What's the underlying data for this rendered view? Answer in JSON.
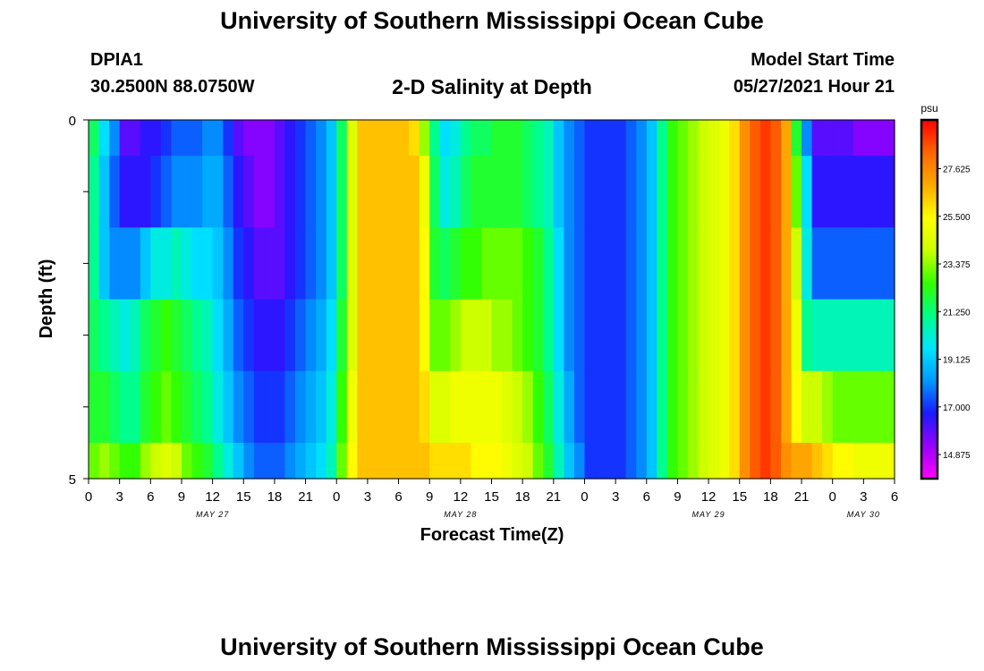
{
  "header": {
    "title": "University of Southern Mississippi Ocean Cube",
    "station_id": "DPIA1",
    "station_coords": "30.2500N  88.0750W",
    "subtitle": "2-D Salinity at Depth",
    "start_label": "Model Start Time",
    "start_value": "05/27/2021 Hour 21"
  },
  "footer": {
    "title": "University of Southern Mississippi Ocean Cube"
  },
  "chart_data": {
    "type": "heatmap",
    "title": "2-D Salinity at Depth",
    "xlabel": "Forecast Time(Z)",
    "ylabel": "Depth (ft)",
    "x_tick_labels": [
      "0",
      "3",
      "6",
      "9",
      "12",
      "15",
      "18",
      "21",
      "0",
      "3",
      "6",
      "9",
      "12",
      "15",
      "18",
      "21",
      "0",
      "3",
      "6",
      "9",
      "12",
      "15",
      "18",
      "21",
      "0",
      "3",
      "6"
    ],
    "date_labels": [
      "MAY 27",
      "MAY 28",
      "MAY 29",
      "MAY 30"
    ],
    "y_tick_labels": [
      "0",
      "5"
    ],
    "y_range": [
      0,
      5
    ],
    "x_range_hours": [
      0,
      78
    ],
    "colorbar": {
      "unit": "psu",
      "range": [
        13.8,
        29.8
      ],
      "tick_labels": [
        "27.625",
        "25.500",
        "23.375",
        "21.250",
        "19.125",
        "17.000",
        "14.875"
      ],
      "colors": [
        "#ff00ff",
        "#9900ff",
        "#1a1aff",
        "#0099ff",
        "#00e5ff",
        "#00ff88",
        "#33ff00",
        "#ccff00",
        "#ffff00",
        "#ffaa00",
        "#ff6600",
        "#ff0000"
      ]
    },
    "depth_layers": [
      0.0,
      0.5,
      1.5,
      2.5,
      3.5,
      4.5,
      5.0
    ],
    "salinity": [
      [
        21.5,
        19.5,
        18.0,
        16.0,
        16.0,
        16.5,
        16.5,
        17.0,
        17.5,
        17.5,
        17.5,
        18.0,
        18.0,
        17.0,
        16.0,
        15.5,
        15.5,
        15.5,
        16.0,
        16.5,
        17.0,
        17.5,
        18.0,
        19.0,
        21.5,
        24.5,
        26.5,
        26.5,
        26.5,
        26.5,
        26.5,
        26.0,
        23.5,
        21.0,
        19.5,
        20.0,
        21.0,
        21.5,
        21.5,
        22.0,
        22.0,
        22.0,
        21.5,
        21.0,
        20.5,
        19.0,
        18.0,
        17.5,
        17.0,
        17.0,
        17.0,
        17.0,
        17.5,
        18.0,
        19.0,
        21.0,
        22.5,
        23.0,
        23.5,
        24.0,
        24.5,
        25.0,
        26.0,
        27.5,
        28.5,
        29.0,
        28.5,
        27.0,
        22.0,
        18.0,
        16.0,
        16.0,
        16.0,
        16.0,
        15.5,
        15.5,
        15.5,
        15.5
      ],
      [
        21.0,
        19.0,
        17.5,
        16.5,
        16.5,
        16.5,
        17.0,
        17.5,
        18.0,
        18.0,
        18.0,
        18.5,
        18.5,
        17.5,
        16.5,
        16.0,
        15.5,
        15.5,
        16.0,
        16.5,
        17.0,
        17.5,
        18.0,
        19.0,
        21.5,
        24.5,
        26.5,
        26.5,
        26.5,
        26.5,
        26.5,
        26.5,
        25.0,
        21.5,
        20.0,
        20.5,
        21.5,
        22.0,
        22.0,
        22.0,
        22.0,
        22.0,
        21.5,
        21.0,
        20.5,
        19.0,
        18.0,
        17.5,
        17.0,
        17.0,
        17.0,
        17.0,
        17.5,
        18.0,
        19.0,
        21.0,
        22.5,
        23.0,
        23.5,
        24.0,
        24.5,
        25.0,
        26.0,
        27.5,
        28.5,
        29.0,
        28.5,
        27.0,
        23.0,
        19.5,
        16.5,
        16.5,
        16.5,
        16.5,
        16.5,
        16.5,
        16.5,
        16.5
      ],
      [
        21.0,
        19.0,
        18.0,
        18.0,
        18.0,
        19.0,
        20.0,
        20.0,
        20.5,
        20.0,
        19.5,
        19.5,
        19.0,
        18.0,
        17.0,
        16.5,
        16.0,
        16.0,
        16.0,
        16.5,
        17.0,
        17.5,
        18.0,
        19.0,
        21.5,
        24.5,
        26.5,
        26.5,
        26.5,
        26.5,
        26.5,
        26.5,
        25.5,
        22.0,
        21.5,
        22.0,
        22.5,
        22.5,
        23.0,
        23.0,
        23.0,
        23.0,
        22.5,
        22.0,
        21.0,
        19.5,
        18.0,
        17.5,
        17.0,
        17.0,
        17.0,
        17.0,
        17.5,
        18.0,
        19.0,
        21.0,
        22.5,
        23.0,
        23.5,
        24.0,
        24.5,
        25.0,
        26.0,
        27.5,
        28.5,
        29.0,
        28.5,
        27.0,
        24.0,
        20.0,
        17.5,
        17.5,
        17.5,
        17.5,
        17.5,
        17.5,
        17.5,
        17.5
      ],
      [
        21.5,
        21.0,
        20.5,
        20.0,
        20.5,
        21.5,
        22.0,
        22.5,
        22.0,
        21.5,
        21.0,
        20.5,
        19.5,
        18.5,
        17.5,
        17.0,
        16.5,
        16.5,
        16.5,
        17.0,
        17.5,
        18.0,
        18.5,
        19.5,
        22.0,
        24.5,
        26.5,
        26.5,
        26.5,
        26.5,
        26.5,
        26.5,
        25.5,
        23.0,
        23.0,
        23.5,
        24.0,
        24.0,
        24.0,
        23.5,
        23.5,
        23.0,
        22.5,
        22.0,
        21.0,
        19.5,
        18.0,
        17.5,
        17.0,
        17.0,
        17.0,
        17.0,
        17.5,
        18.0,
        19.0,
        21.0,
        22.5,
        23.0,
        23.5,
        24.0,
        24.5,
        25.0,
        26.0,
        27.5,
        28.5,
        29.0,
        28.5,
        27.0,
        25.0,
        21.0,
        20.5,
        20.5,
        20.5,
        20.5,
        20.5,
        20.5,
        20.5,
        20.5
      ],
      [
        22.0,
        22.0,
        21.5,
        21.0,
        21.0,
        22.0,
        22.5,
        23.0,
        22.5,
        22.0,
        21.5,
        21.0,
        20.0,
        19.0,
        18.0,
        17.5,
        17.0,
        17.0,
        17.0,
        17.5,
        18.0,
        18.5,
        19.0,
        20.0,
        22.5,
        25.0,
        26.5,
        26.5,
        26.5,
        26.5,
        26.5,
        26.5,
        26.0,
        24.5,
        24.5,
        25.0,
        25.0,
        25.0,
        25.0,
        25.0,
        24.5,
        24.0,
        23.5,
        22.5,
        21.5,
        20.0,
        18.5,
        17.5,
        17.0,
        17.0,
        17.0,
        17.0,
        17.5,
        18.0,
        19.0,
        21.0,
        22.5,
        23.0,
        23.5,
        24.0,
        24.5,
        25.0,
        26.0,
        27.5,
        28.5,
        29.0,
        28.5,
        27.0,
        25.5,
        24.0,
        24.0,
        23.5,
        23.0,
        23.0,
        23.0,
        23.0,
        23.0,
        23.0
      ],
      [
        23.0,
        23.5,
        23.0,
        22.5,
        22.5,
        23.5,
        24.0,
        24.5,
        24.0,
        23.0,
        22.5,
        22.0,
        21.0,
        20.0,
        19.0,
        18.0,
        17.5,
        17.5,
        17.5,
        18.0,
        18.5,
        19.0,
        19.5,
        20.5,
        23.0,
        25.5,
        26.5,
        26.5,
        26.5,
        26.5,
        26.5,
        26.5,
        26.5,
        26.0,
        26.0,
        26.0,
        26.0,
        25.5,
        25.5,
        25.5,
        25.0,
        24.5,
        24.0,
        23.0,
        22.0,
        20.5,
        19.0,
        18.0,
        17.0,
        17.0,
        17.0,
        17.0,
        17.5,
        18.0,
        19.0,
        21.0,
        22.5,
        23.0,
        23.5,
        24.0,
        24.5,
        25.0,
        26.0,
        27.5,
        28.5,
        29.0,
        28.5,
        27.5,
        27.0,
        27.0,
        26.5,
        26.0,
        25.5,
        25.5,
        25.0,
        25.0,
        25.0,
        25.0
      ]
    ]
  }
}
